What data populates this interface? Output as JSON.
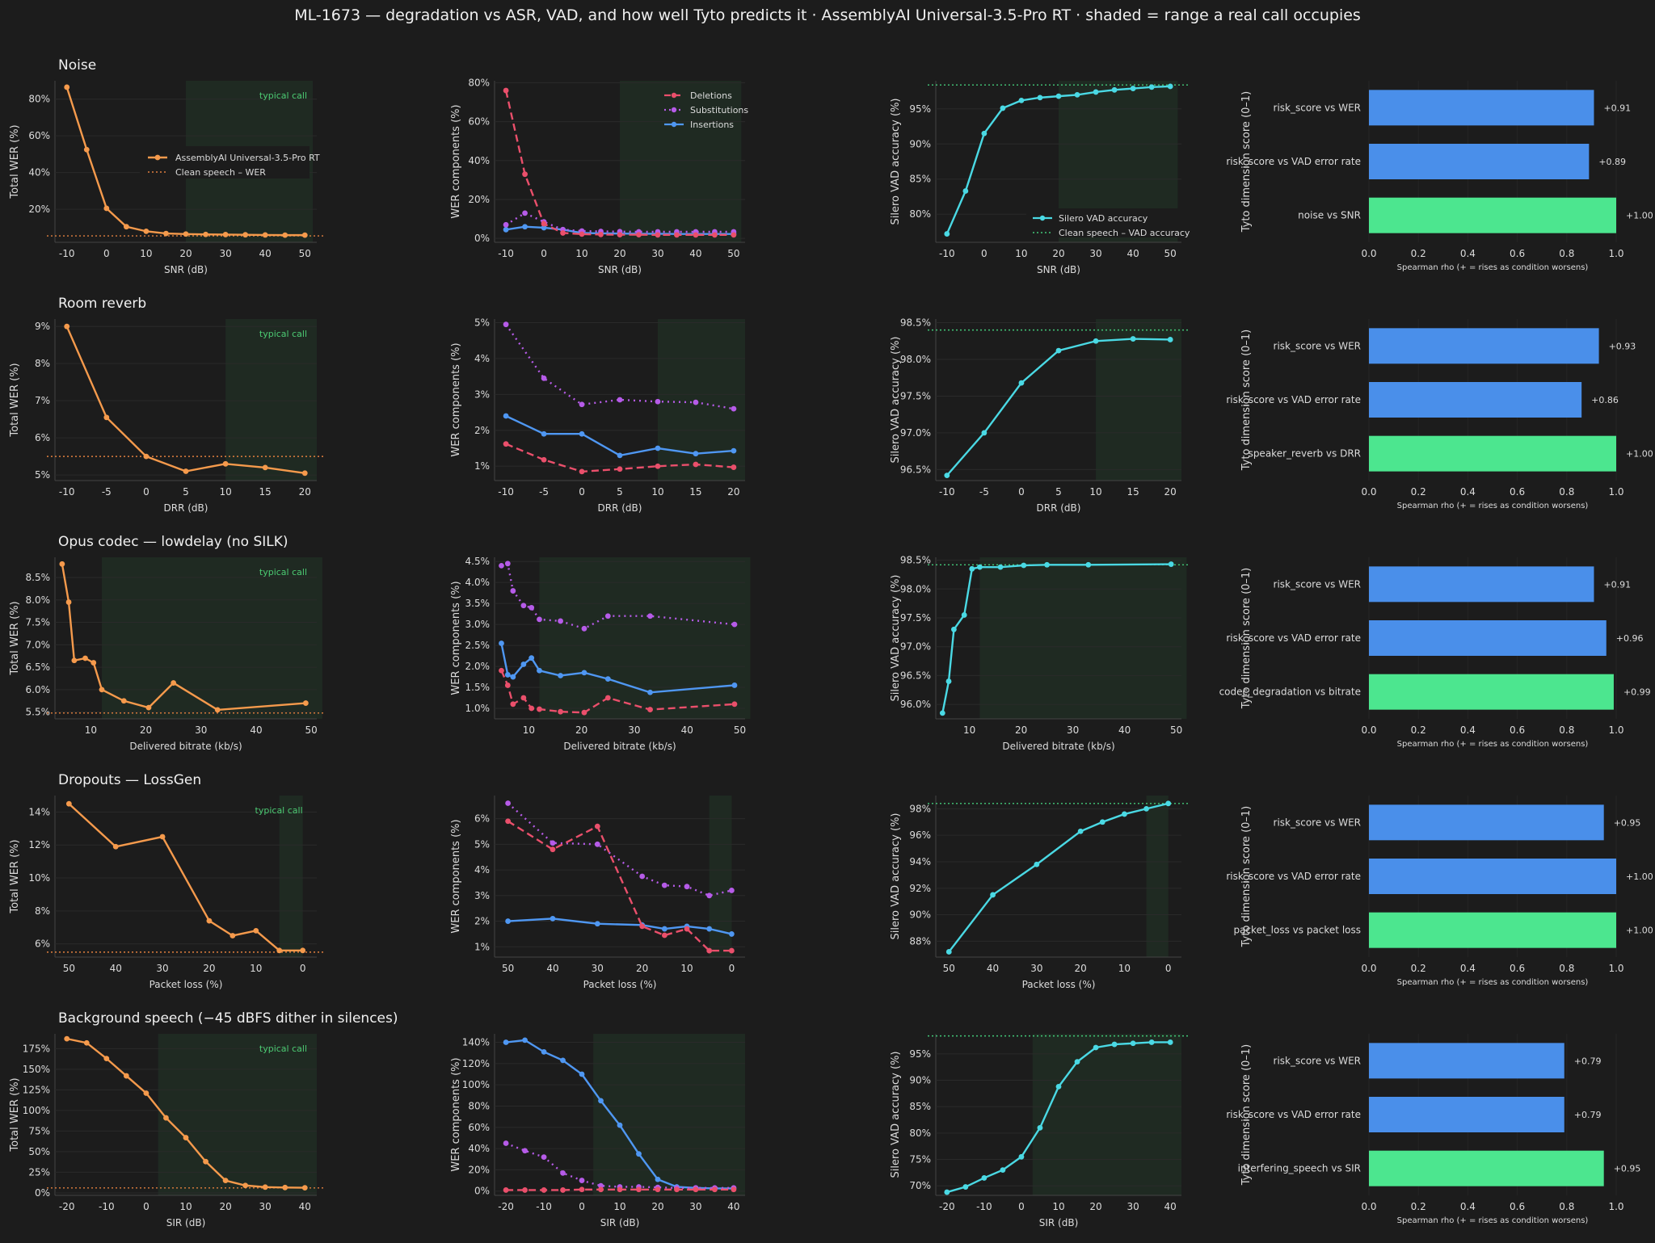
{
  "title": "ML-1673 — degradation vs ASR, VAD, and how well Tyto predicts it  ·  AssemblyAI Universal-3.5-Pro RT  ·  shaded = range a real call occupies",
  "colors": {
    "background": "#1c1c1c",
    "total_wer": "#f59a4c",
    "deletions": "#ea4f6b",
    "substitutions": "#b65be8",
    "insertions": "#4f97f2",
    "vad": "#4ad9e4",
    "bar_risk": "#4a8fea",
    "bar_dimension": "#4ce68f",
    "shade": "#1f2a22",
    "clean_line_wer": "#e07f3e",
    "clean_line_vad": "#43c979",
    "typical_call_text": "#4ccb73"
  },
  "common": {
    "ylabel_wer": "Total WER (%)",
    "ylabel_comp": "WER components (%)",
    "ylabel_vad": "Silero VAD accuracy (%)",
    "ylabel_bar": "Tyto dimension score (0–1)",
    "xlabel_bar": "Spearman rho  (+ = rises as condition worsens)",
    "typical_call": "typical call",
    "legend_wer_series": "AssemblyAI Universal-3.5-Pro RT",
    "legend_wer_clean": "Clean speech – WER",
    "legend_deletions": "Deletions",
    "legend_substitutions": "Substitutions",
    "legend_insertions": "Insertions",
    "legend_vad_series": "Silero VAD accuracy",
    "legend_vad_clean": "Clean speech – VAD accuracy"
  },
  "chart_data": [
    {
      "type": "line",
      "name": "Noise",
      "xlabel": "SNR (dB)",
      "shade": [
        20,
        52
      ],
      "x": [
        -10,
        -5,
        0,
        5,
        10,
        15,
        20,
        25,
        30,
        35,
        40,
        45,
        50
      ],
      "wer": {
        "values": [
          86.5,
          52.5,
          20.5,
          10.5,
          8,
          6.8,
          6.5,
          6.3,
          6.2,
          6.1,
          6,
          5.9,
          5.9
        ],
        "clean": 5.5,
        "ylim": [
          2,
          90
        ],
        "ticks": [
          20,
          40,
          60,
          80
        ],
        "fmt": "pct"
      },
      "comp": {
        "deletions": [
          76,
          33,
          7.5,
          2.8,
          2.2,
          2.0,
          1.9,
          1.9,
          1.8,
          1.8,
          1.8,
          1.8,
          1.8
        ],
        "substitutions": [
          7,
          13,
          8.5,
          4.5,
          3.8,
          3.6,
          3.5,
          3.4,
          3.4,
          3.4,
          3.4,
          3.4,
          3.4
        ],
        "insertions": [
          4.5,
          6,
          5.5,
          4.5,
          2.8,
          2.6,
          2.5,
          2.4,
          2.4,
          2.3,
          2.3,
          2.3,
          2.3
        ],
        "ylim": [
          -2,
          81
        ],
        "ticks": [
          0,
          20,
          40,
          60,
          80
        ],
        "fmt": "pct"
      },
      "vad": {
        "values": [
          77.2,
          83.3,
          91.5,
          95.1,
          96.2,
          96.6,
          96.8,
          97.0,
          97.4,
          97.7,
          97.9,
          98.1,
          98.2
        ],
        "clean": 98.4,
        "ylim": [
          76,
          99
        ],
        "ticks": [
          80,
          85,
          90,
          95
        ],
        "fmt": "pct"
      },
      "bars": [
        {
          "label": "risk_score  vs  WER",
          "value": 0.91,
          "kind": "risk"
        },
        {
          "label": "risk_score  vs  VAD error rate",
          "value": 0.89,
          "kind": "risk"
        },
        {
          "label": "noise  vs  SNR",
          "value": 1.0,
          "kind": "dim"
        }
      ]
    },
    {
      "type": "line",
      "name": "Room reverb",
      "xlabel": "DRR (dB)",
      "shade": [
        10,
        21.5
      ],
      "x": [
        -10,
        -5,
        0,
        5,
        10,
        15,
        20
      ],
      "wer": {
        "values": [
          9.0,
          6.55,
          5.5,
          5.1,
          5.3,
          5.2,
          5.05
        ],
        "clean": 5.5,
        "ylim": [
          4.85,
          9.2
        ],
        "ticks": [
          5,
          6,
          7,
          8,
          9
        ],
        "fmt": "pct"
      },
      "comp": {
        "deletions": [
          1.62,
          1.18,
          0.85,
          0.92,
          1.0,
          1.05,
          0.97
        ],
        "substitutions": [
          4.95,
          3.45,
          2.72,
          2.85,
          2.8,
          2.78,
          2.6
        ],
        "insertions": [
          2.4,
          1.9,
          1.9,
          1.3,
          1.5,
          1.35,
          1.43
        ],
        "ylim": [
          0.6,
          5.1
        ],
        "ticks": [
          1,
          2,
          3,
          4,
          5
        ],
        "fmt": "pct"
      },
      "vad": {
        "values": [
          96.42,
          97.0,
          97.68,
          98.12,
          98.25,
          98.28,
          98.27
        ],
        "clean": 98.4,
        "ylim": [
          96.35,
          98.55
        ],
        "ticks": [
          96.5,
          97.0,
          97.5,
          98.0,
          98.5
        ],
        "fmt": "pct1"
      },
      "bars": [
        {
          "label": "risk_score  vs  WER",
          "value": 0.93,
          "kind": "risk"
        },
        {
          "label": "risk_score  vs  VAD error rate",
          "value": 0.86,
          "kind": "risk"
        },
        {
          "label": "speaker_reverb  vs  DRR",
          "value": 1.0,
          "kind": "dim"
        }
      ]
    },
    {
      "type": "line",
      "name": "Opus codec — lowdelay (no SILK)",
      "xlabel": "Delivered bitrate (kb/s)",
      "shade": [
        12,
        52
      ],
      "x": [
        4.8,
        6,
        7,
        9,
        10.5,
        12,
        16,
        20.5,
        25,
        33,
        49
      ],
      "wer": {
        "values": [
          8.8,
          7.95,
          6.65,
          6.7,
          6.6,
          6.0,
          5.75,
          5.6,
          6.15,
          5.55,
          5.7
        ],
        "clean": 5.48,
        "ylim": [
          5.35,
          8.95
        ],
        "ticks": [
          5.5,
          6.0,
          6.5,
          7.0,
          7.5,
          8.0,
          8.5
        ],
        "fmt": "pct1"
      },
      "comp": {
        "deletions": [
          1.9,
          1.55,
          1.1,
          1.25,
          1.0,
          0.98,
          0.92,
          0.9,
          1.25,
          0.97,
          1.1
        ],
        "substitutions": [
          4.4,
          4.45,
          3.8,
          3.45,
          3.4,
          3.12,
          3.08,
          2.9,
          3.2,
          3.2,
          3.0
        ],
        "insertions": [
          2.55,
          1.8,
          1.75,
          2.05,
          2.2,
          1.9,
          1.78,
          1.85,
          1.7,
          1.38,
          1.55
        ],
        "ylim": [
          0.75,
          4.6
        ],
        "ticks": [
          1.0,
          1.5,
          2.0,
          2.5,
          3.0,
          3.5,
          4.0,
          4.5
        ],
        "fmt": "pct1"
      },
      "vad": {
        "values": [
          95.85,
          96.4,
          97.3,
          97.55,
          98.35,
          98.38,
          98.38,
          98.41,
          98.42,
          98.42,
          98.43
        ],
        "clean": 98.42,
        "ylim": [
          95.75,
          98.55
        ],
        "ticks": [
          96.0,
          96.5,
          97.0,
          97.5,
          98.0,
          98.5
        ],
        "fmt": "pct1"
      },
      "bars": [
        {
          "label": "risk_score  vs  WER",
          "value": 0.91,
          "kind": "risk"
        },
        {
          "label": "risk_score  vs  VAD error rate",
          "value": 0.96,
          "kind": "risk"
        },
        {
          "label": "codec_degradation  vs  bitrate",
          "value": 0.99,
          "kind": "dim"
        }
      ]
    },
    {
      "type": "line",
      "name": "Dropouts — LossGen",
      "xlabel": "Packet loss (%)",
      "shade": [
        5,
        0
      ],
      "reversed": true,
      "x": [
        50,
        40,
        30,
        20,
        15,
        10,
        5,
        0
      ],
      "wer": {
        "values": [
          14.5,
          11.9,
          12.5,
          7.4,
          6.5,
          6.8,
          5.6,
          5.6
        ],
        "clean": 5.5,
        "ylim": [
          5.2,
          15
        ],
        "ticks": [
          6,
          8,
          10,
          12,
          14
        ],
        "fmt": "pct"
      },
      "comp": {
        "deletions": [
          5.9,
          4.8,
          5.7,
          1.8,
          1.45,
          1.7,
          0.85,
          0.85
        ],
        "substitutions": [
          6.6,
          5.05,
          5.0,
          3.75,
          3.4,
          3.35,
          3.0,
          3.2
        ],
        "insertions": [
          2.0,
          2.1,
          1.9,
          1.85,
          1.7,
          1.8,
          1.7,
          1.5
        ],
        "ylim": [
          0.6,
          6.9
        ],
        "ticks": [
          1,
          2,
          3,
          4,
          5,
          6
        ],
        "fmt": "pct"
      },
      "vad": {
        "values": [
          87.2,
          91.5,
          93.8,
          96.3,
          97.0,
          97.6,
          98.0,
          98.4
        ],
        "clean": 98.4,
        "ylim": [
          86.8,
          99
        ],
        "ticks": [
          88,
          90,
          92,
          94,
          96,
          98
        ],
        "fmt": "pct"
      },
      "bars": [
        {
          "label": "risk_score  vs  WER",
          "value": 0.95,
          "kind": "risk"
        },
        {
          "label": "risk_score  vs  VAD error rate",
          "value": 1.0,
          "kind": "risk"
        },
        {
          "label": "packet_loss  vs  packet loss",
          "value": 1.0,
          "kind": "dim"
        }
      ]
    },
    {
      "type": "line",
      "name": "Background speech (−45 dBFS dither in silences)",
      "xlabel": "SIR (dB)",
      "shade": [
        3,
        43
      ],
      "x": [
        -20,
        -15,
        -10,
        -5,
        0,
        5,
        10,
        15,
        20,
        25,
        30,
        35,
        40
      ],
      "wer": {
        "values": [
          187,
          182,
          163,
          142,
          121,
          91,
          67,
          38,
          15,
          9,
          7,
          6.5,
          6.2
        ],
        "clean": 6,
        "ylim": [
          -3,
          193
        ],
        "ticks": [
          0,
          25,
          50,
          75,
          100,
          125,
          150,
          175
        ],
        "fmt": "pct"
      },
      "comp": {
        "deletions": [
          1,
          1,
          1,
          1,
          1.5,
          1.5,
          1.5,
          1.5,
          1.5,
          1.5,
          1.5,
          1.5,
          1.5
        ],
        "substitutions": [
          45,
          38,
          32,
          17,
          10,
          5,
          4,
          4,
          3.5,
          3,
          3,
          3,
          3
        ],
        "insertions": [
          140,
          142,
          131,
          123,
          110,
          85,
          62,
          35,
          11,
          4,
          3,
          2.5,
          2.5
        ],
        "ylim": [
          -4,
          148
        ],
        "ticks": [
          0,
          20,
          40,
          60,
          80,
          100,
          120,
          140
        ],
        "fmt": "pct"
      },
      "vad": {
        "values": [
          68.8,
          69.8,
          71.5,
          73,
          75.5,
          81,
          88.8,
          93.5,
          96.2,
          96.8,
          97,
          97.2,
          97.2
        ],
        "clean": 98.4,
        "ylim": [
          68.2,
          98.8
        ],
        "ticks": [
          70,
          75,
          80,
          85,
          90,
          95
        ],
        "fmt": "pct"
      },
      "bars": [
        {
          "label": "risk_score  vs  WER",
          "value": 0.79,
          "kind": "risk"
        },
        {
          "label": "risk_score  vs  VAD error rate",
          "value": 0.79,
          "kind": "risk"
        },
        {
          "label": "interfering_speech  vs  SIR",
          "value": 0.95,
          "kind": "dim"
        }
      ]
    }
  ]
}
